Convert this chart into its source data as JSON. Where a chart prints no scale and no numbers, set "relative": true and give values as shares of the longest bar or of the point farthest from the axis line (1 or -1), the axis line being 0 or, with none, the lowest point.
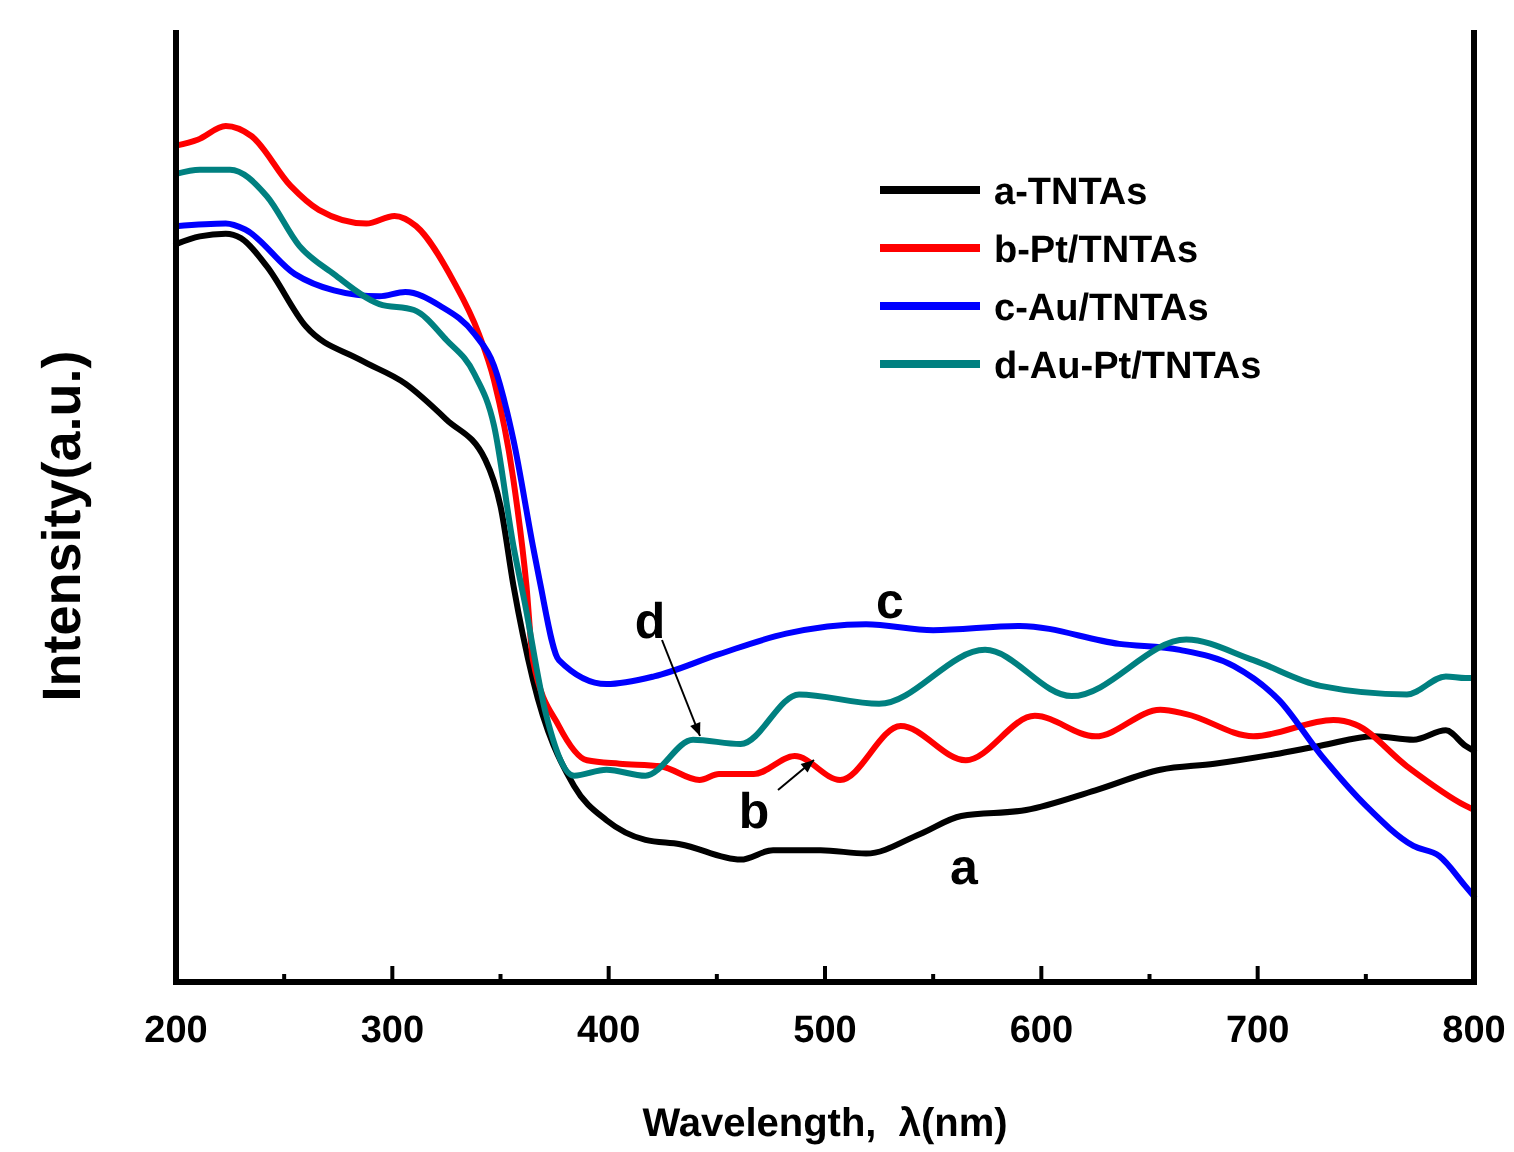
{
  "chart_data": {
    "type": "line",
    "relative": true,
    "xlabel": "Wavelength,  λ(nm)",
    "ylabel": "Intensity(a.u.)",
    "xlim": [
      200,
      800
    ],
    "xticks": [
      200,
      {
        "value": 250,
        "label": null
      },
      300,
      {
        "value": 350,
        "label": null
      },
      400,
      {
        "value": 450,
        "label": null
      },
      500,
      {
        "value": 550,
        "label": null
      },
      600,
      {
        "value": 650,
        "label": null
      },
      700,
      {
        "value": 750,
        "label": null
      },
      800
    ],
    "legend": "top right",
    "grid": false,
    "marker": "none",
    "line_style": "solid",
    "series": [
      {
        "name": "a-TNTAs",
        "color": "#000000",
        "x": [
          200,
          211,
          223,
          230,
          242,
          260,
          285,
          306,
          325,
          343,
          350,
          356,
          365,
          384,
          399,
          417,
          433,
          461,
          476,
          498,
          519,
          544,
          563,
          593,
          625,
          655,
          680,
          708,
          729,
          754,
          772,
          787,
          796,
          800
        ],
        "values": [
          0.862,
          0.871,
          0.874,
          0.869,
          0.836,
          0.766,
          0.727,
          0.699,
          0.657,
          0.61,
          0.556,
          0.463,
          0.353,
          0.229,
          0.189,
          0.166,
          0.161,
          0.143,
          0.154,
          0.154,
          0.15,
          0.173,
          0.194,
          0.201,
          0.224,
          0.248,
          0.255,
          0.266,
          0.276,
          0.287,
          0.283,
          0.294,
          0.276,
          0.27
        ]
      },
      {
        "name": "b-Pt/TNTAs",
        "color": "#ff0000",
        "x": [
          200,
          210,
          223,
          235,
          253,
          266,
          288,
          301,
          311,
          328,
          340,
          347,
          356,
          362,
          365,
          377,
          390,
          405,
          424,
          442,
          451,
          467,
          486,
          507,
          535,
          565,
          597,
          625,
          655,
          667,
          698,
          735,
          745,
          769,
          796,
          800
        ],
        "values": [
          0.977,
          0.984,
          1.0,
          0.988,
          0.93,
          0.902,
          0.886,
          0.895,
          0.883,
          0.82,
          0.757,
          0.703,
          0.586,
          0.463,
          0.376,
          0.299,
          0.259,
          0.255,
          0.252,
          0.236,
          0.243,
          0.243,
          0.264,
          0.236,
          0.299,
          0.259,
          0.311,
          0.287,
          0.318,
          0.313,
          0.287,
          0.306,
          0.301,
          0.252,
          0.206,
          0.201
        ]
      },
      {
        "name": "c-Au/TNTAs",
        "color": "#0000ff",
        "x": [
          200,
          223,
          232,
          255,
          273,
          294,
          306,
          322,
          338,
          347,
          356,
          365,
          368,
          377,
          399,
          421,
          451,
          482,
          519,
          550,
          590,
          636,
          664,
          689,
          710,
          729,
          750,
          772,
          784,
          796,
          800
        ],
        "values": [
          0.883,
          0.886,
          0.879,
          0.827,
          0.808,
          0.801,
          0.806,
          0.79,
          0.757,
          0.72,
          0.633,
          0.509,
          0.47,
          0.376,
          0.348,
          0.357,
          0.383,
          0.407,
          0.418,
          0.411,
          0.416,
          0.395,
          0.388,
          0.369,
          0.329,
          0.266,
          0.206,
          0.159,
          0.147,
          0.112,
          0.1
        ]
      },
      {
        "name": "d-Au-Pt/TNTAs",
        "color": "#008080",
        "x": [
          200,
          211,
          225,
          242,
          257,
          273,
          294,
          310,
          325,
          338,
          347,
          356,
          361,
          371,
          384,
          399,
          417,
          439,
          461,
          488,
          525,
          574,
          614,
          667,
          698,
          729,
          769,
          787,
          796,
          800
        ],
        "values": [
          0.944,
          0.949,
          0.949,
          0.918,
          0.86,
          0.827,
          0.792,
          0.785,
          0.75,
          0.71,
          0.65,
          0.509,
          0.446,
          0.313,
          0.241,
          0.248,
          0.241,
          0.283,
          0.278,
          0.336,
          0.325,
          0.388,
          0.334,
          0.4,
          0.376,
          0.346,
          0.336,
          0.357,
          0.355,
          0.355
        ]
      }
    ],
    "annotations": [
      "a",
      "b",
      "c",
      "d"
    ]
  }
}
